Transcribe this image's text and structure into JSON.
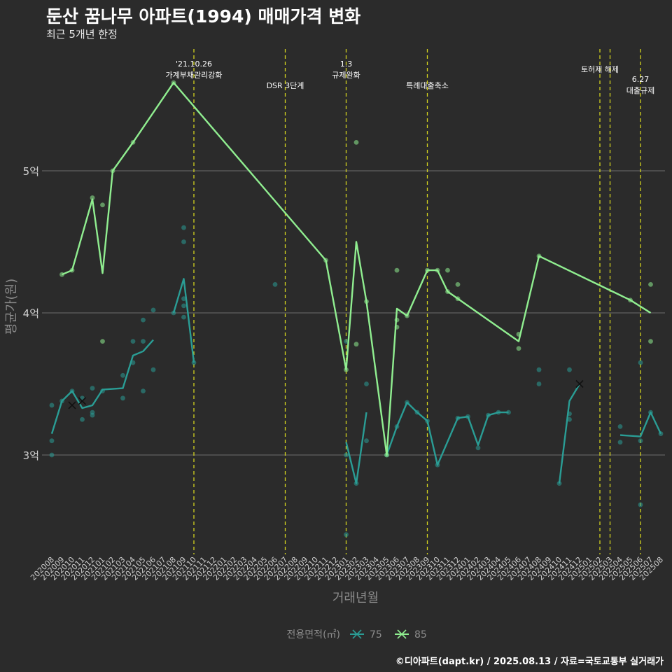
{
  "title": "둔산 꿈나무 아파트(1994) 매매가격 변화",
  "subtitle": "최근 5개년 한정",
  "caption": "©디아파트(dapt.kr) / 2025.08.13 / 자료=국토교통부 실거래가",
  "colors": {
    "background": "#2b2b2b",
    "grid": "#6e6e6e",
    "series_75": "#2a9d95",
    "series_85": "#90ee90",
    "event_line": "#d4d41e",
    "axis_text": "#cfcfcf",
    "axis_title": "#8c8c8c"
  },
  "chart_data": {
    "type": "line",
    "xlabel": "거래년월",
    "ylabel": "평균가(원)",
    "y_ticks": [
      {
        "value": 3.0,
        "label": "3억"
      },
      {
        "value": 4.0,
        "label": "4억"
      },
      {
        "value": 5.0,
        "label": "5억"
      }
    ],
    "ylim": [
      2.3,
      5.75
    ],
    "grid": true,
    "legend_position": "bottom",
    "legend_title": "전용면적(㎡)",
    "categories": [
      "202008",
      "202009",
      "202010",
      "202011",
      "202012",
      "202101",
      "202102",
      "202103",
      "202104",
      "202105",
      "202106",
      "202107",
      "202108",
      "202109",
      "202110",
      "202111",
      "202112",
      "202201",
      "202202",
      "202203",
      "202204",
      "202205",
      "202206",
      "202207",
      "202208",
      "202209",
      "202210",
      "202211",
      "202212",
      "202301",
      "202302",
      "202303",
      "202304",
      "202305",
      "202306",
      "202307",
      "202308",
      "202309",
      "202310",
      "202311",
      "202312",
      "202401",
      "202402",
      "202403",
      "202404",
      "202405",
      "202406",
      "202407",
      "202408",
      "202409",
      "202410",
      "202411",
      "202412",
      "202501",
      "202502",
      "202503",
      "202504",
      "202505",
      "202506",
      "202507",
      "202508"
    ],
    "events": [
      {
        "month": "202110",
        "label_lines": [
          "'21.10.26",
          "가계부채관리강화"
        ]
      },
      {
        "month": "202207",
        "label_lines": [
          "DSR 3단계"
        ]
      },
      {
        "month": "202301",
        "label_lines": [
          "1.3",
          "규제완화"
        ]
      },
      {
        "month": "202309",
        "label_lines": [
          "특례대출축소"
        ]
      },
      {
        "month": "202502",
        "label_lines": [
          "토허제 해제"
        ]
      },
      {
        "month": "202503",
        "label_lines": []
      },
      {
        "month": "202506",
        "label_lines": [
          "6.27",
          "대출규제"
        ]
      }
    ],
    "series": [
      {
        "name": "75",
        "line_segments": [
          [
            [
              "202008",
              3.15
            ],
            [
              "202009",
              3.38
            ],
            [
              "202010",
              3.45
            ],
            [
              "202011",
              3.33
            ],
            [
              "202012",
              3.35
            ],
            [
              "202101",
              3.46
            ],
            [
              "202103",
              3.47
            ],
            [
              "202104",
              3.7
            ],
            [
              "202105",
              3.73
            ],
            [
              "202106",
              3.81
            ]
          ],
          [
            [
              "202108",
              4.0
            ],
            [
              "202109",
              4.24
            ],
            [
              "202110",
              3.65
            ]
          ],
          [
            [
              "202301",
              3.09
            ],
            [
              "202302",
              2.8
            ],
            [
              "202303",
              3.3
            ]
          ],
          [
            [
              "202305",
              3.0
            ],
            [
              "202306",
              3.2
            ],
            [
              "202307",
              3.37
            ],
            [
              "202308",
              3.3
            ],
            [
              "202309",
              3.24
            ],
            [
              "202310",
              2.93
            ],
            [
              "202312",
              3.26
            ],
            [
              "202401",
              3.27
            ],
            [
              "202402",
              3.07
            ],
            [
              "202403",
              3.28
            ],
            [
              "202404",
              3.3
            ],
            [
              "202405",
              3.3
            ]
          ],
          [
            [
              "202410",
              2.8
            ],
            [
              "202411",
              3.38
            ],
            [
              "202412",
              3.5
            ]
          ],
          [
            [
              "202504",
              3.14
            ],
            [
              "202506",
              3.13
            ],
            [
              "202507",
              3.3
            ],
            [
              "202508",
              3.15
            ]
          ]
        ],
        "points": [
          [
            "202008",
            3.35
          ],
          [
            "202008",
            3.1
          ],
          [
            "202008",
            3.0
          ],
          [
            "202009",
            3.38
          ],
          [
            "202010",
            3.45
          ],
          [
            "202011",
            3.4
          ],
          [
            "202011",
            3.25
          ],
          [
            "202012",
            3.47
          ],
          [
            "202012",
            3.3
          ],
          [
            "202012",
            3.28
          ],
          [
            "202101",
            3.45
          ],
          [
            "202103",
            3.56
          ],
          [
            "202103",
            3.4
          ],
          [
            "202104",
            3.8
          ],
          [
            "202104",
            3.65
          ],
          [
            "202105",
            3.95
          ],
          [
            "202105",
            3.8
          ],
          [
            "202105",
            3.45
          ],
          [
            "202106",
            4.02
          ],
          [
            "202106",
            3.6
          ],
          [
            "202108",
            4.0
          ],
          [
            "202109",
            4.6
          ],
          [
            "202109",
            4.5
          ],
          [
            "202109",
            4.1
          ],
          [
            "202109",
            4.05
          ],
          [
            "202109",
            3.97
          ],
          [
            "202110",
            3.65
          ],
          [
            "202206",
            4.2
          ],
          [
            "202301",
            3.8
          ],
          [
            "202301",
            3.0
          ],
          [
            "202301",
            2.44
          ],
          [
            "202302",
            2.8
          ],
          [
            "202303",
            3.5
          ],
          [
            "202303",
            3.1
          ],
          [
            "202305",
            3.0
          ],
          [
            "202306",
            3.2
          ],
          [
            "202307",
            3.37
          ],
          [
            "202308",
            3.3
          ],
          [
            "202309",
            3.24
          ],
          [
            "202310",
            2.93
          ],
          [
            "202312",
            3.26
          ],
          [
            "202401",
            3.27
          ],
          [
            "202402",
            3.05
          ],
          [
            "202403",
            3.28
          ],
          [
            "202404",
            3.3
          ],
          [
            "202405",
            3.3
          ],
          [
            "202408",
            3.6
          ],
          [
            "202408",
            3.5
          ],
          [
            "202410",
            2.8
          ],
          [
            "202411",
            3.6
          ],
          [
            "202411",
            3.29
          ],
          [
            "202411",
            3.25
          ],
          [
            "202504",
            3.2
          ],
          [
            "202504",
            3.09
          ],
          [
            "202506",
            3.65
          ],
          [
            "202506",
            3.1
          ],
          [
            "202506",
            2.65
          ],
          [
            "202507",
            3.3
          ],
          [
            "202508",
            3.15
          ]
        ],
        "cross_points": [
          [
            "202010",
            3.35
          ],
          [
            "202011",
            3.38
          ],
          [
            "202412",
            3.5
          ]
        ]
      },
      {
        "name": "85",
        "line_segments": [
          [
            [
              "202009",
              4.27
            ],
            [
              "202010",
              4.3
            ],
            [
              "202012",
              4.8
            ],
            [
              "202101",
              4.28
            ],
            [
              "202102",
              5.0
            ],
            [
              "202104",
              5.2
            ],
            [
              "202108",
              5.62
            ],
            [
              "202211",
              4.37
            ],
            [
              "202301",
              3.6
            ],
            [
              "202302",
              4.5
            ],
            [
              "202303",
              4.08
            ],
            [
              "202305",
              3.0
            ],
            [
              "202306",
              4.03
            ],
            [
              "202307",
              3.98
            ],
            [
              "202309",
              4.3
            ],
            [
              "202310",
              4.3
            ],
            [
              "202311",
              4.15
            ],
            [
              "202406",
              3.8
            ],
            [
              "202408",
              4.4
            ],
            [
              "202505",
              4.09
            ],
            [
              "202507",
              4.0
            ]
          ]
        ],
        "points": [
          [
            "202009",
            4.27
          ],
          [
            "202010",
            4.3
          ],
          [
            "202012",
            4.81
          ],
          [
            "202101",
            4.76
          ],
          [
            "202101",
            3.8
          ],
          [
            "202102",
            5.0
          ],
          [
            "202104",
            5.2
          ],
          [
            "202108",
            5.62
          ],
          [
            "202211",
            4.37
          ],
          [
            "202301",
            3.6
          ],
          [
            "202302",
            5.2
          ],
          [
            "202302",
            3.78
          ],
          [
            "202303",
            4.08
          ],
          [
            "202305",
            3.0
          ],
          [
            "202306",
            4.3
          ],
          [
            "202306",
            3.95
          ],
          [
            "202306",
            3.9
          ],
          [
            "202307",
            3.98
          ],
          [
            "202309",
            4.3
          ],
          [
            "202310",
            4.3
          ],
          [
            "202311",
            4.3
          ],
          [
            "202311",
            4.15
          ],
          [
            "202312",
            4.2
          ],
          [
            "202312",
            4.1
          ],
          [
            "202406",
            3.85
          ],
          [
            "202406",
            3.75
          ],
          [
            "202408",
            4.4
          ],
          [
            "202505",
            4.09
          ],
          [
            "202507",
            4.2
          ],
          [
            "202507",
            3.8
          ]
        ],
        "cross_points": []
      }
    ]
  }
}
